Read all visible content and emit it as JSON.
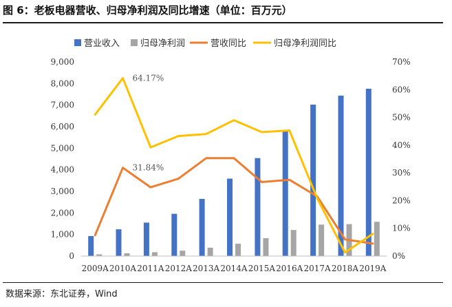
{
  "header": {
    "title": "图 6：老板电器营收、归母净利润及同比增速（单位：百万元）"
  },
  "footer": {
    "source": "数据来源：东北证券，Wind"
  },
  "chart_data": {
    "type": "bar",
    "categories": [
      "2009A",
      "2010A",
      "2011A",
      "2012A",
      "2013A",
      "2014A",
      "2015A",
      "2016A",
      "2017A",
      "2018A",
      "2019A"
    ],
    "series": [
      {
        "name": "营业收入",
        "kind": "bar",
        "axis": "left",
        "color": "#4472C4",
        "values": [
          930,
          1240,
          1550,
          1960,
          2650,
          3590,
          4540,
          5790,
          7020,
          7440,
          7760
        ]
      },
      {
        "name": "归母净利润",
        "kind": "bar",
        "axis": "left",
        "color": "#A5A5A5",
        "values": [
          80,
          130,
          180,
          250,
          390,
          570,
          830,
          1210,
          1460,
          1480,
          1590
        ]
      },
      {
        "name": "营收同比",
        "kind": "line",
        "axis": "right",
        "color": "#ED7D31",
        "values": [
          7.5,
          31.84,
          24.8,
          27.9,
          35.3,
          35.3,
          26.7,
          27.5,
          21.5,
          6.0,
          4.5
        ]
      },
      {
        "name": "归母净利润同比",
        "kind": "line",
        "axis": "right",
        "color": "#FFC000",
        "values": [
          51.0,
          64.17,
          39.2,
          43.3,
          44.0,
          49.0,
          44.7,
          45.3,
          20.8,
          1.3,
          8.0
        ]
      }
    ],
    "left_axis": {
      "ylim": [
        0,
        9000
      ],
      "ticks": [
        "0",
        "1,000",
        "2,000",
        "3,000",
        "4,000",
        "5,000",
        "6,000",
        "7,000",
        "8,000",
        "9,000"
      ]
    },
    "right_axis": {
      "ylim": [
        0,
        70
      ],
      "ticks": [
        "0%",
        "10%",
        "20%",
        "30%",
        "40%",
        "50%",
        "60%",
        "70%"
      ]
    },
    "annotations": [
      {
        "series": 3,
        "index": 1,
        "text": "64.17%"
      },
      {
        "series": 2,
        "index": 1,
        "text": "31.84%"
      }
    ],
    "legend": {
      "position": "top"
    },
    "grid": false
  }
}
